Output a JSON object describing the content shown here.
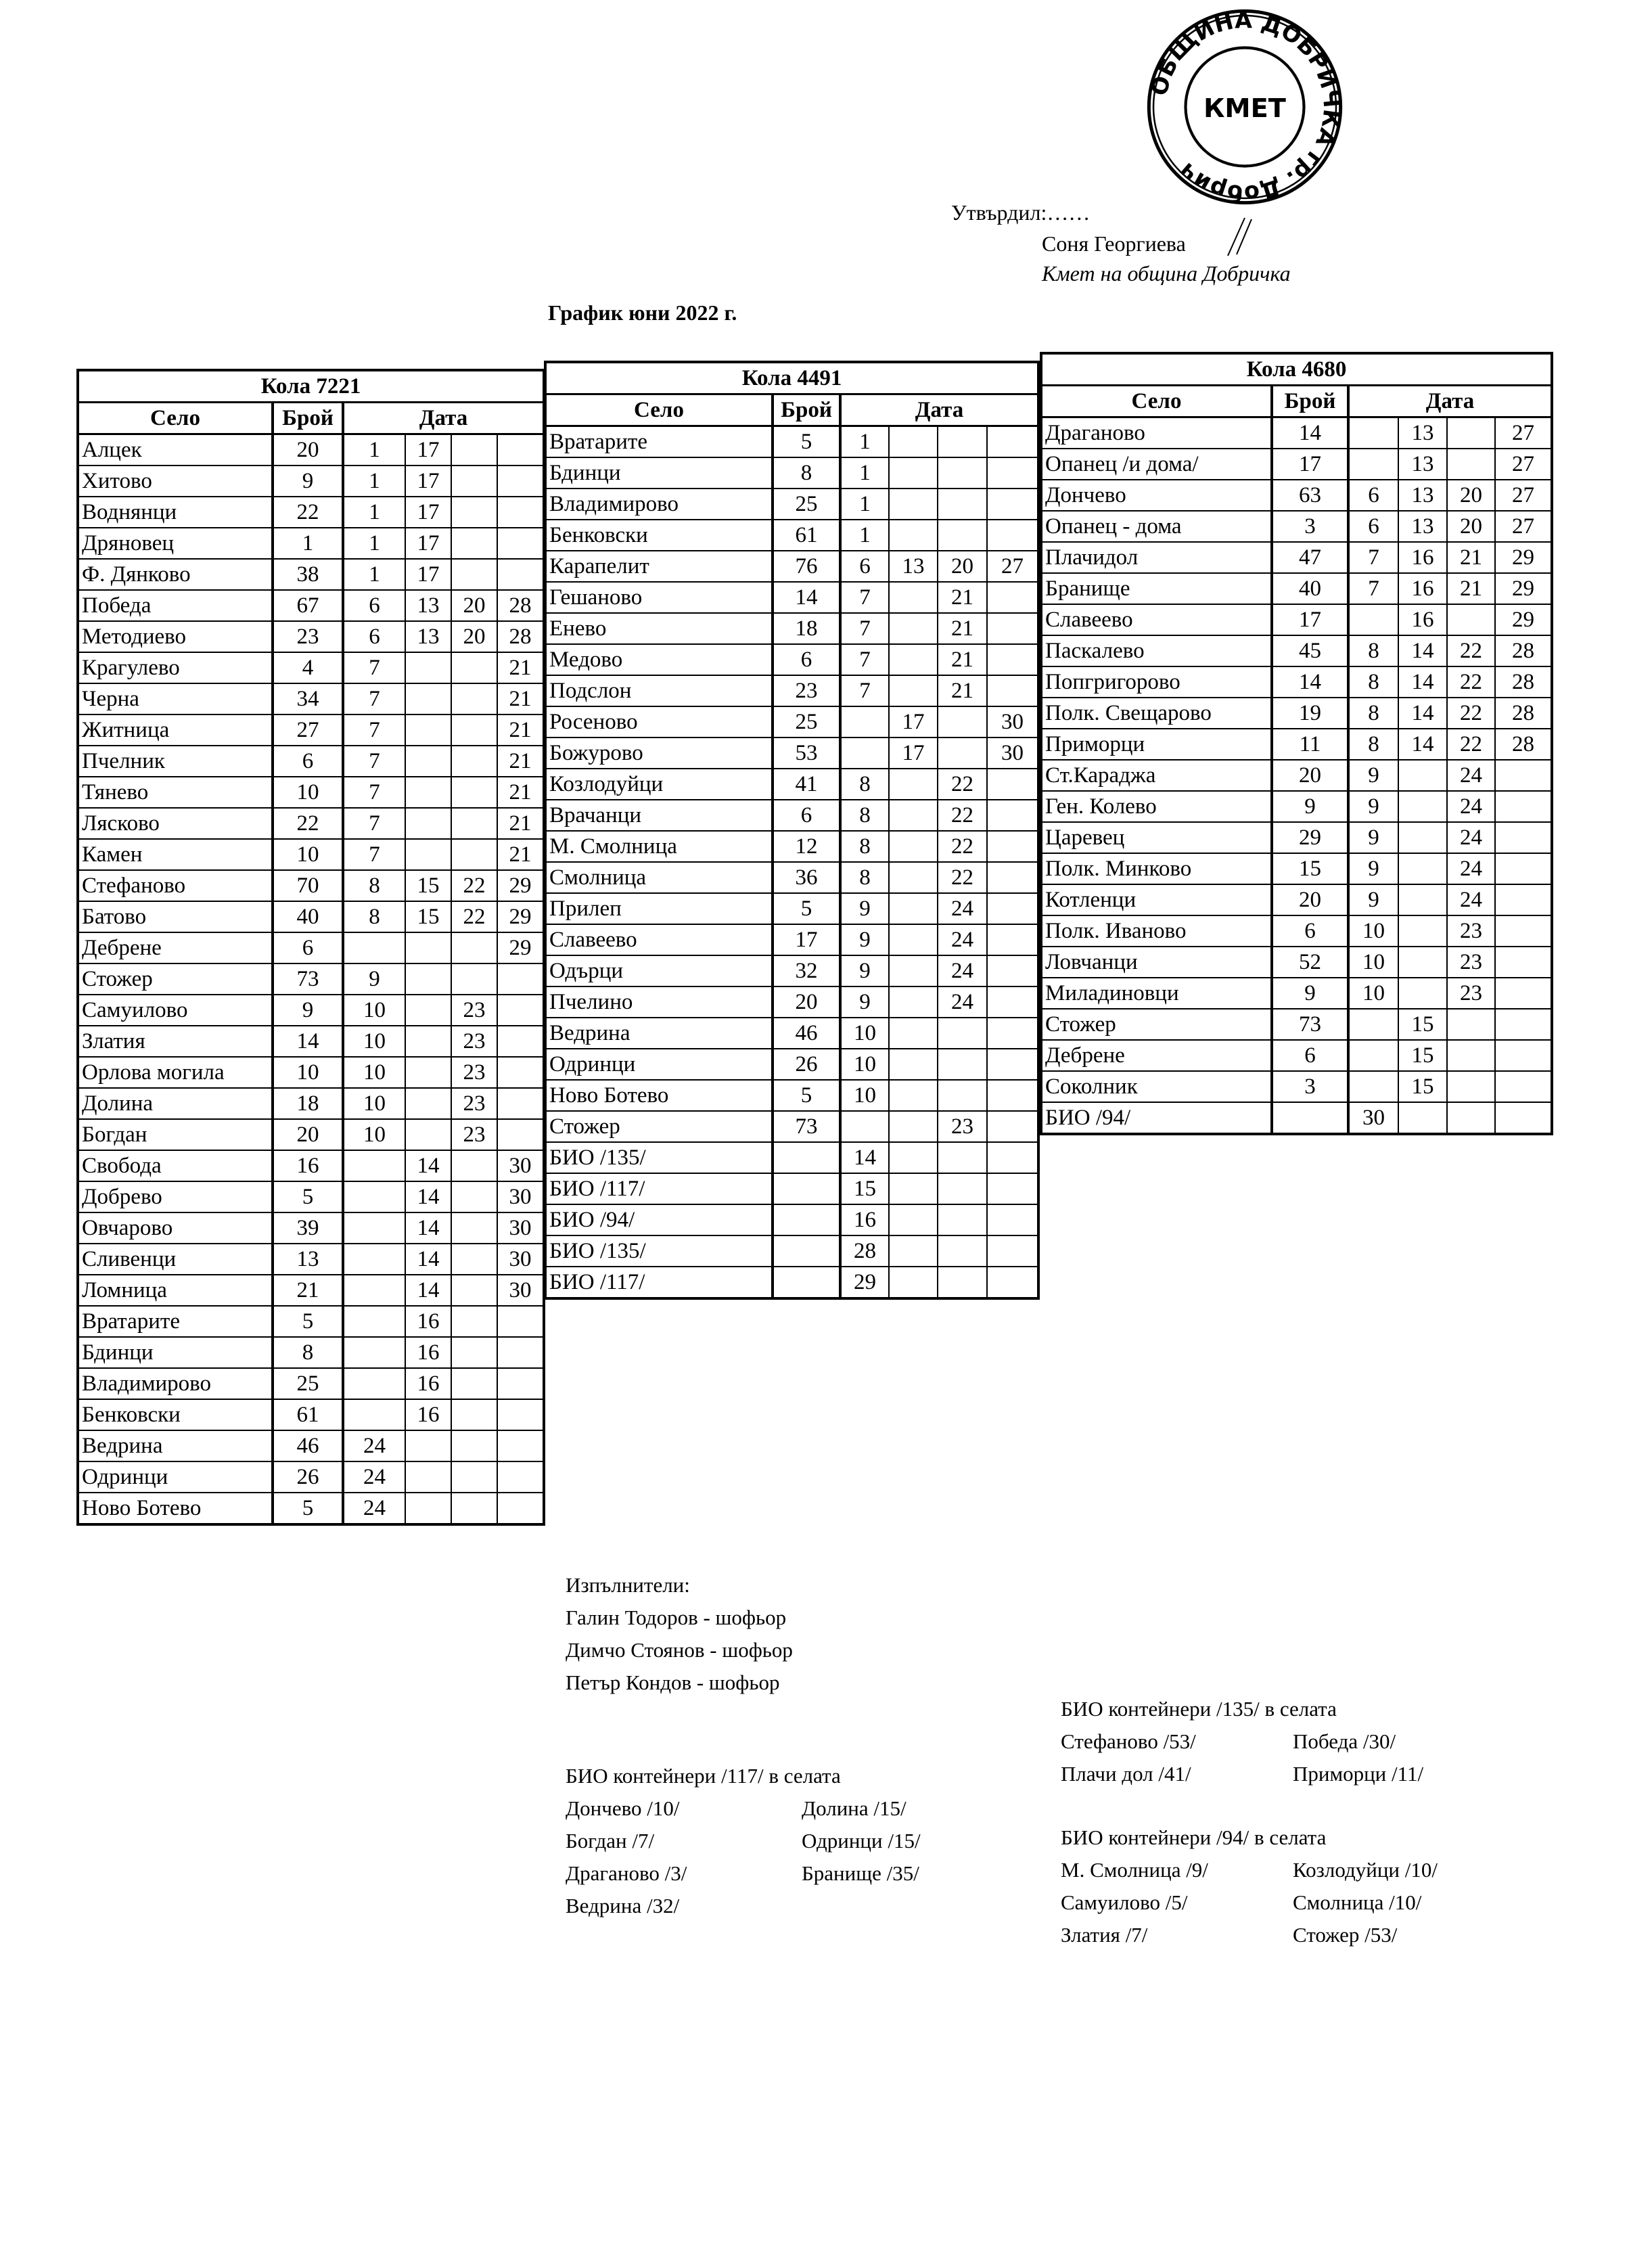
{
  "stamp": {
    "text": "ОБЩИНА ДОБРИЧКА гр. Добрич",
    "center": "КМЕТ"
  },
  "approval": {
    "label": "Утвърдил:……",
    "name": "Соня Георгиева",
    "position": "Кмет  на община Добричка"
  },
  "title": "График юни 2022 г.",
  "column_headers": {
    "village": "Село",
    "count": "Брой",
    "date": "Дата"
  },
  "tables": [
    {
      "vehicle": "Кола 7221",
      "rows": [
        [
          "Алцек",
          "20",
          "1",
          "17",
          "",
          ""
        ],
        [
          "Хитово",
          "9",
          "1",
          "17",
          "",
          ""
        ],
        [
          "Воднянци",
          "22",
          "1",
          "17",
          "",
          ""
        ],
        [
          "Дряновец",
          "1",
          "1",
          "17",
          "",
          ""
        ],
        [
          "Ф. Дянково",
          "38",
          "1",
          "17",
          "",
          ""
        ],
        [
          "Победа",
          "67",
          "6",
          "13",
          "20",
          "28"
        ],
        [
          "Методиево",
          "23",
          "6",
          "13",
          "20",
          "28"
        ],
        [
          "Крагулево",
          "4",
          "7",
          "",
          "",
          "21"
        ],
        [
          "Черна",
          "34",
          "7",
          "",
          "",
          "21"
        ],
        [
          "Житница",
          "27",
          "7",
          "",
          "",
          "21"
        ],
        [
          "Пчелник",
          "6",
          "7",
          "",
          "",
          "21"
        ],
        [
          "Тянево",
          "10",
          "7",
          "",
          "",
          "21"
        ],
        [
          "Лясково",
          "22",
          "7",
          "",
          "",
          "21"
        ],
        [
          "Камен",
          "10",
          "7",
          "",
          "",
          "21"
        ],
        [
          "Стефаново",
          "70",
          "8",
          "15",
          "22",
          "29"
        ],
        [
          "Батово",
          "40",
          "8",
          "15",
          "22",
          "29"
        ],
        [
          "Дебрене",
          "6",
          "",
          "",
          "",
          "29"
        ],
        [
          "Стожер",
          "73",
          "9",
          "",
          "",
          ""
        ],
        [
          "Самуилово",
          "9",
          "10",
          "",
          "23",
          ""
        ],
        [
          "Златия",
          "14",
          "10",
          "",
          "23",
          ""
        ],
        [
          "Орлова могила",
          "10",
          "10",
          "",
          "23",
          ""
        ],
        [
          "Долина",
          "18",
          "10",
          "",
          "23",
          ""
        ],
        [
          "Богдан",
          "20",
          "10",
          "",
          "23",
          ""
        ],
        [
          "Свобода",
          "16",
          "",
          "14",
          "",
          "30"
        ],
        [
          "Добрево",
          "5",
          "",
          "14",
          "",
          "30"
        ],
        [
          "Овчарово",
          "39",
          "",
          "14",
          "",
          "30"
        ],
        [
          "Сливенци",
          "13",
          "",
          "14",
          "",
          "30"
        ],
        [
          "Ломница",
          "21",
          "",
          "14",
          "",
          "30"
        ],
        [
          "Вратарите",
          "5",
          "",
          "16",
          "",
          ""
        ],
        [
          "Бдинци",
          "8",
          "",
          "16",
          "",
          ""
        ],
        [
          "Владимирово",
          "25",
          "",
          "16",
          "",
          ""
        ],
        [
          "Бенковски",
          "61",
          "",
          "16",
          "",
          ""
        ],
        [
          "Ведрина",
          "46",
          "24",
          "",
          "",
          ""
        ],
        [
          "Одринци",
          "26",
          "24",
          "",
          "",
          ""
        ],
        [
          "Ново Ботево",
          "5",
          "24",
          "",
          "",
          ""
        ]
      ]
    },
    {
      "vehicle": "Кола 4491",
      "rows": [
        [
          "Вратарите",
          "5",
          "1",
          "",
          "",
          ""
        ],
        [
          "Бдинци",
          "8",
          "1",
          "",
          "",
          ""
        ],
        [
          "Владимирово",
          "25",
          "1",
          "",
          "",
          ""
        ],
        [
          "Бенковски",
          "61",
          "1",
          "",
          "",
          ""
        ],
        [
          "Карапелит",
          "76",
          "6",
          "13",
          "20",
          "27"
        ],
        [
          "Гешаново",
          "14",
          "7",
          "",
          "21",
          ""
        ],
        [
          "Енево",
          "18",
          "7",
          "",
          "21",
          ""
        ],
        [
          "Медово",
          "6",
          "7",
          "",
          "21",
          ""
        ],
        [
          "Подслон",
          "23",
          "7",
          "",
          "21",
          ""
        ],
        [
          "Росеново",
          "25",
          "",
          "17",
          "",
          "30"
        ],
        [
          "Божурово",
          "53",
          "",
          "17",
          "",
          "30"
        ],
        [
          "Козлодуйци",
          "41",
          "8",
          "",
          "22",
          ""
        ],
        [
          "Врачанци",
          "6",
          "8",
          "",
          "22",
          ""
        ],
        [
          "М. Смолница",
          "12",
          "8",
          "",
          "22",
          ""
        ],
        [
          "Смолница",
          "36",
          "8",
          "",
          "22",
          ""
        ],
        [
          "Прилеп",
          "5",
          "9",
          "",
          "24",
          ""
        ],
        [
          "Славеево",
          "17",
          "9",
          "",
          "24",
          ""
        ],
        [
          "Одърци",
          "32",
          "9",
          "",
          "24",
          ""
        ],
        [
          "Пчелино",
          "20",
          "9",
          "",
          "24",
          ""
        ],
        [
          "Ведрина",
          "46",
          "10",
          "",
          "",
          ""
        ],
        [
          "Одринци",
          "26",
          "10",
          "",
          "",
          ""
        ],
        [
          "Ново Ботево",
          "5",
          "10",
          "",
          "",
          ""
        ],
        [
          "Стожер",
          "73",
          "",
          "",
          "23",
          ""
        ],
        [
          "БИО /135/",
          "",
          "14",
          "",
          "",
          ""
        ],
        [
          "БИО /117/",
          "",
          "15",
          "",
          "",
          ""
        ],
        [
          "БИО /94/",
          "",
          "16",
          "",
          "",
          ""
        ],
        [
          "БИО /135/",
          "",
          "28",
          "",
          "",
          ""
        ],
        [
          "БИО /117/",
          "",
          "29",
          "",
          "",
          ""
        ]
      ]
    },
    {
      "vehicle": "Кола 4680",
      "rows": [
        [
          "Драганово",
          "14",
          "",
          "13",
          "",
          "27"
        ],
        [
          "Опанец /и дома/",
          "17",
          "",
          "13",
          "",
          "27"
        ],
        [
          "Дончево",
          "63",
          "6",
          "13",
          "20",
          "27"
        ],
        [
          "Опанец - дома",
          "3",
          "6",
          "13",
          "20",
          "27"
        ],
        [
          "Плачидол",
          "47",
          "7",
          "16",
          "21",
          "29"
        ],
        [
          "Бранище",
          "40",
          "7",
          "16",
          "21",
          "29"
        ],
        [
          "Славеево",
          "17",
          "",
          "16",
          "",
          "29"
        ],
        [
          "Паскалево",
          "45",
          "8",
          "14",
          "22",
          "28"
        ],
        [
          "Попгригорово",
          "14",
          "8",
          "14",
          "22",
          "28"
        ],
        [
          "Полк. Свещарово",
          "19",
          "8",
          "14",
          "22",
          "28"
        ],
        [
          "Приморци",
          "11",
          "8",
          "14",
          "22",
          "28"
        ],
        [
          "Ст.Караджа",
          "20",
          "9",
          "",
          "24",
          ""
        ],
        [
          "Ген. Колево",
          "9",
          "9",
          "",
          "24",
          ""
        ],
        [
          "Царевец",
          "29",
          "9",
          "",
          "24",
          ""
        ],
        [
          "Полк. Минково",
          "15",
          "9",
          "",
          "24",
          ""
        ],
        [
          "Котленци",
          "20",
          "9",
          "",
          "24",
          ""
        ],
        [
          "Полк. Иваново",
          "6",
          "10",
          "",
          "23",
          ""
        ],
        [
          "Ловчанци",
          "52",
          "10",
          "",
          "23",
          ""
        ],
        [
          "Миладиновци",
          "9",
          "10",
          "",
          "23",
          ""
        ],
        [
          "Стожер",
          "73",
          "",
          "15",
          "",
          ""
        ],
        [
          "Дебрене",
          "6",
          "",
          "15",
          "",
          ""
        ],
        [
          "Соколник",
          "3",
          "",
          "15",
          "",
          ""
        ],
        [
          "БИО /94/",
          "",
          "30",
          "",
          "",
          ""
        ]
      ]
    }
  ],
  "executors": {
    "label": "Изпълнители:",
    "people": [
      "Галин Тодоров - шофьор",
      "Димчо Стоянов - шофьор",
      "Петър Кондов - шофьор"
    ]
  },
  "bio_117": {
    "heading": "БИО контейнери /117/ в селата",
    "left": [
      "Дончево /10/",
      "Богдан /7/",
      "Драганово /3/",
      "Ведрина /32/"
    ],
    "right": [
      "Долина /15/",
      "Одринци /15/",
      "Бранище /35/"
    ]
  },
  "bio_135": {
    "heading": "БИО контейнери /135/ в селата",
    "left": [
      "Стефаново /53/",
      "Плачи дол /41/"
    ],
    "right": [
      "Победа /30/",
      "Приморци /11/"
    ]
  },
  "bio_94": {
    "heading": "БИО контейнери /94/ в селата",
    "left": [
      "М. Смолница /9/",
      "Самуилово /5/",
      "Златия /7/"
    ],
    "right": [
      "Козлодуйци /10/",
      "Смолница /10/",
      "Стожер /53/"
    ]
  }
}
